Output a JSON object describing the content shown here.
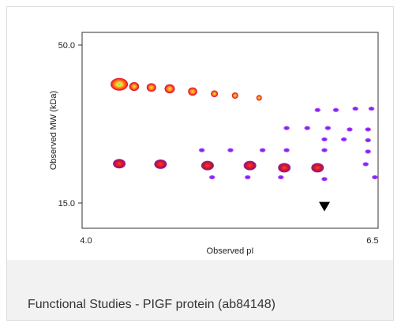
{
  "caption": "Functional Studies - PIGF protein (ab84148)",
  "chart_data": {
    "type": "scatter",
    "xlabel": "Observed pI",
    "ylabel": "Observed MW (kDa)",
    "xlim": [
      4.0,
      6.5
    ],
    "ylim": [
      15.0,
      50.0
    ],
    "x_ticks": [
      "4.0",
      "6.5"
    ],
    "y_ticks": [
      "50.0",
      "15.0"
    ],
    "marker": {
      "symbol": "down-triangle",
      "x": 6.08,
      "y": 14.2,
      "color": "#000000"
    },
    "colors": {
      "hot": "#ff2a1f",
      "core_hot": "#f7e63a",
      "core_peak": "#5fd65a",
      "mid": "#c8102e",
      "purple": "#9b30ff",
      "purple_center": "#6b1fd1"
    },
    "series": [
      {
        "intensity": "high",
        "spots": [
          {
            "x": 4.29,
            "y": 41.3,
            "r": 1.0
          },
          {
            "x": 4.42,
            "y": 40.8,
            "r": 0.62
          },
          {
            "x": 4.57,
            "y": 40.6,
            "r": 0.6
          },
          {
            "x": 4.73,
            "y": 40.3,
            "r": 0.65
          },
          {
            "x": 4.93,
            "y": 39.7,
            "r": 0.58
          },
          {
            "x": 5.12,
            "y": 39.2,
            "r": 0.45
          },
          {
            "x": 5.3,
            "y": 38.8,
            "r": 0.4
          },
          {
            "x": 5.51,
            "y": 38.3,
            "r": 0.35
          }
        ]
      },
      {
        "intensity": "medium",
        "spots": [
          {
            "x": 4.29,
            "y": 23.7,
            "r": 0.42
          },
          {
            "x": 4.65,
            "y": 23.6,
            "r": 0.42
          },
          {
            "x": 5.06,
            "y": 23.3,
            "r": 0.42
          },
          {
            "x": 5.43,
            "y": 23.3,
            "r": 0.42
          },
          {
            "x": 5.73,
            "y": 22.8,
            "r": 0.4
          },
          {
            "x": 6.02,
            "y": 22.8,
            "r": 0.38
          }
        ]
      },
      {
        "intensity": "low",
        "spots": [
          {
            "x": 6.02,
            "y": 35.6
          },
          {
            "x": 6.18,
            "y": 35.6
          },
          {
            "x": 6.35,
            "y": 35.9
          },
          {
            "x": 6.49,
            "y": 35.9
          },
          {
            "x": 5.75,
            "y": 31.6
          },
          {
            "x": 5.93,
            "y": 31.6
          },
          {
            "x": 6.11,
            "y": 31.6
          },
          {
            "x": 6.3,
            "y": 31.3
          },
          {
            "x": 6.46,
            "y": 31.3
          },
          {
            "x": 6.08,
            "y": 29.1
          },
          {
            "x": 6.25,
            "y": 29.1
          },
          {
            "x": 6.46,
            "y": 28.9
          },
          {
            "x": 5.01,
            "y": 26.7
          },
          {
            "x": 5.26,
            "y": 26.7
          },
          {
            "x": 5.54,
            "y": 26.7
          },
          {
            "x": 5.75,
            "y": 26.7
          },
          {
            "x": 6.08,
            "y": 26.7
          },
          {
            "x": 6.46,
            "y": 26.4
          },
          {
            "x": 6.44,
            "y": 23.6
          },
          {
            "x": 5.1,
            "y": 20.7
          },
          {
            "x": 5.41,
            "y": 20.7
          },
          {
            "x": 5.7,
            "y": 20.7
          },
          {
            "x": 6.08,
            "y": 20.3
          },
          {
            "x": 6.52,
            "y": 20.7
          }
        ]
      }
    ]
  }
}
